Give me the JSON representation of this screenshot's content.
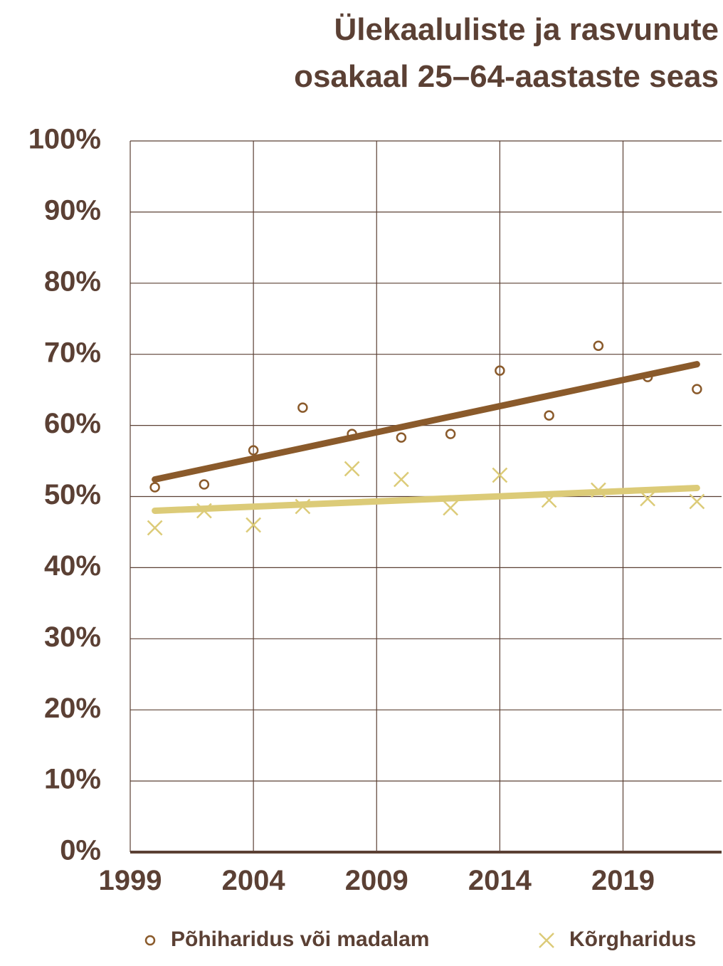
{
  "chart_data": {
    "type": "scatter",
    "title": [
      "Ülekaaluliste ja rasvunute",
      "osakaal 25–64-aastaste seas"
    ],
    "x": [
      2000,
      2002,
      2004,
      2006,
      2008,
      2010,
      2012,
      2014,
      2016,
      2018,
      2020,
      2022
    ],
    "series": [
      {
        "name": "Põhiharidus või madalam",
        "color": "#8a5a2b",
        "marker": "circle",
        "values": [
          51.3,
          51.7,
          56.5,
          62.5,
          58.8,
          58.3,
          58.8,
          67.7,
          61.4,
          71.2,
          66.8,
          65.1
        ],
        "trend": {
          "x": [
            2000,
            2022
          ],
          "values": [
            52.4,
            68.6
          ]
        }
      },
      {
        "name": "Kõrgharidus",
        "color": "#dccb78",
        "marker": "x",
        "values": [
          45.6,
          48,
          46,
          48.6,
          53.9,
          52.4,
          48.4,
          53,
          49.5,
          50.9,
          49.7,
          49.3
        ],
        "trend": {
          "x": [
            2000,
            2022
          ],
          "values": [
            48,
            51.2
          ]
        }
      }
    ],
    "xlim": [
      1999,
      2023
    ],
    "xticks": [
      1999,
      2004,
      2009,
      2014,
      2019
    ],
    "ylim": [
      0,
      100
    ],
    "yticks": [
      {
        "value": 0,
        "label": "0%"
      },
      {
        "value": 10,
        "label": "10%"
      },
      {
        "value": 20,
        "label": "20%"
      },
      {
        "value": 30,
        "label": "30%"
      },
      {
        "value": 40,
        "label": "40%"
      },
      {
        "value": 50,
        "label": "50%"
      },
      {
        "value": 60,
        "label": "60%"
      },
      {
        "value": 70,
        "label": "70%"
      },
      {
        "value": 80,
        "label": "80%"
      },
      {
        "value": 90,
        "label": "90%"
      },
      {
        "value": 100,
        "label": "100%"
      }
    ],
    "grid": true
  }
}
